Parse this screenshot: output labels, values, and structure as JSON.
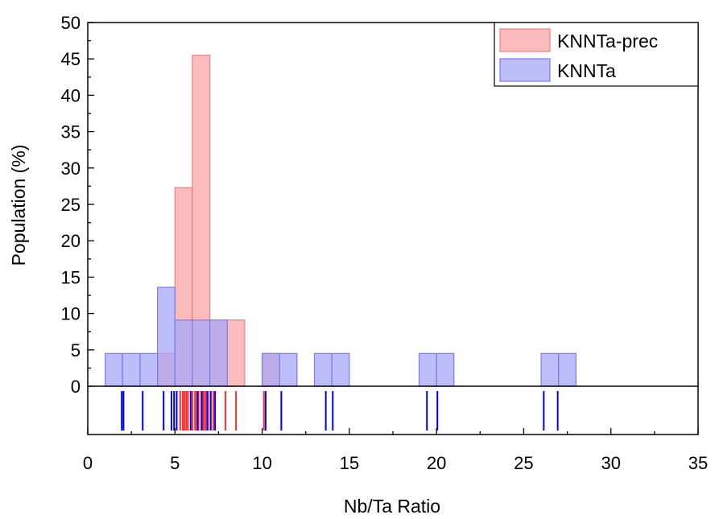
{
  "chart_data": {
    "type": "bar",
    "title": "",
    "xlabel": "Nb/Ta Ratio",
    "ylabel": "Population (%)",
    "xlim": [
      0,
      35
    ],
    "ylim": [
      0,
      50
    ],
    "xticks": [
      0,
      5,
      10,
      15,
      20,
      25,
      30,
      35
    ],
    "yticks": [
      0,
      5,
      10,
      15,
      20,
      25,
      30,
      35,
      40,
      45,
      50
    ],
    "bin_width": 1,
    "grid": false,
    "legend_position": "top-right",
    "series": [
      {
        "name": "KNNTa-prec",
        "color": "#f8a6a6",
        "edge_color": "#f07f7f",
        "rug_color": "#ff3030",
        "bins": [
          {
            "start": 4,
            "value": 4.5
          },
          {
            "start": 5,
            "value": 27.3
          },
          {
            "start": 6,
            "value": 45.5
          },
          {
            "start": 7,
            "value": 9.1
          },
          {
            "start": 8,
            "value": 9.1
          },
          {
            "start": 10,
            "value": 4.5
          }
        ],
        "rug": [
          5.3,
          5.45,
          5.55,
          5.65,
          5.75,
          6.0,
          6.15,
          6.25,
          6.35,
          6.5,
          6.65,
          6.75,
          6.9,
          7.05,
          7.2,
          7.9,
          8.5,
          10.1
        ]
      },
      {
        "name": "KNNTa",
        "color": "#a7a7f8",
        "edge_color": "#7c7cee",
        "rug_color": "#0000dd",
        "bins": [
          {
            "start": 1,
            "value": 4.5
          },
          {
            "start": 2,
            "value": 4.5
          },
          {
            "start": 3,
            "value": 4.5
          },
          {
            "start": 4,
            "value": 13.6
          },
          {
            "start": 5,
            "value": 9.1
          },
          {
            "start": 6,
            "value": 9.1
          },
          {
            "start": 7,
            "value": 9.1
          },
          {
            "start": 10,
            "value": 4.5
          },
          {
            "start": 11,
            "value": 4.5
          },
          {
            "start": 13,
            "value": 4.5
          },
          {
            "start": 14,
            "value": 4.5
          },
          {
            "start": 19,
            "value": 4.5
          },
          {
            "start": 20,
            "value": 4.5
          },
          {
            "start": 26,
            "value": 4.5
          },
          {
            "start": 27,
            "value": 4.5
          }
        ],
        "rug": [
          1.95,
          2.05,
          3.15,
          4.35,
          4.8,
          4.95,
          5.1,
          5.9,
          6.3,
          6.55,
          6.85,
          7.05,
          7.3,
          10.2,
          11.1,
          13.65,
          14.05,
          19.45,
          20.05,
          26.15,
          26.95
        ]
      }
    ]
  }
}
